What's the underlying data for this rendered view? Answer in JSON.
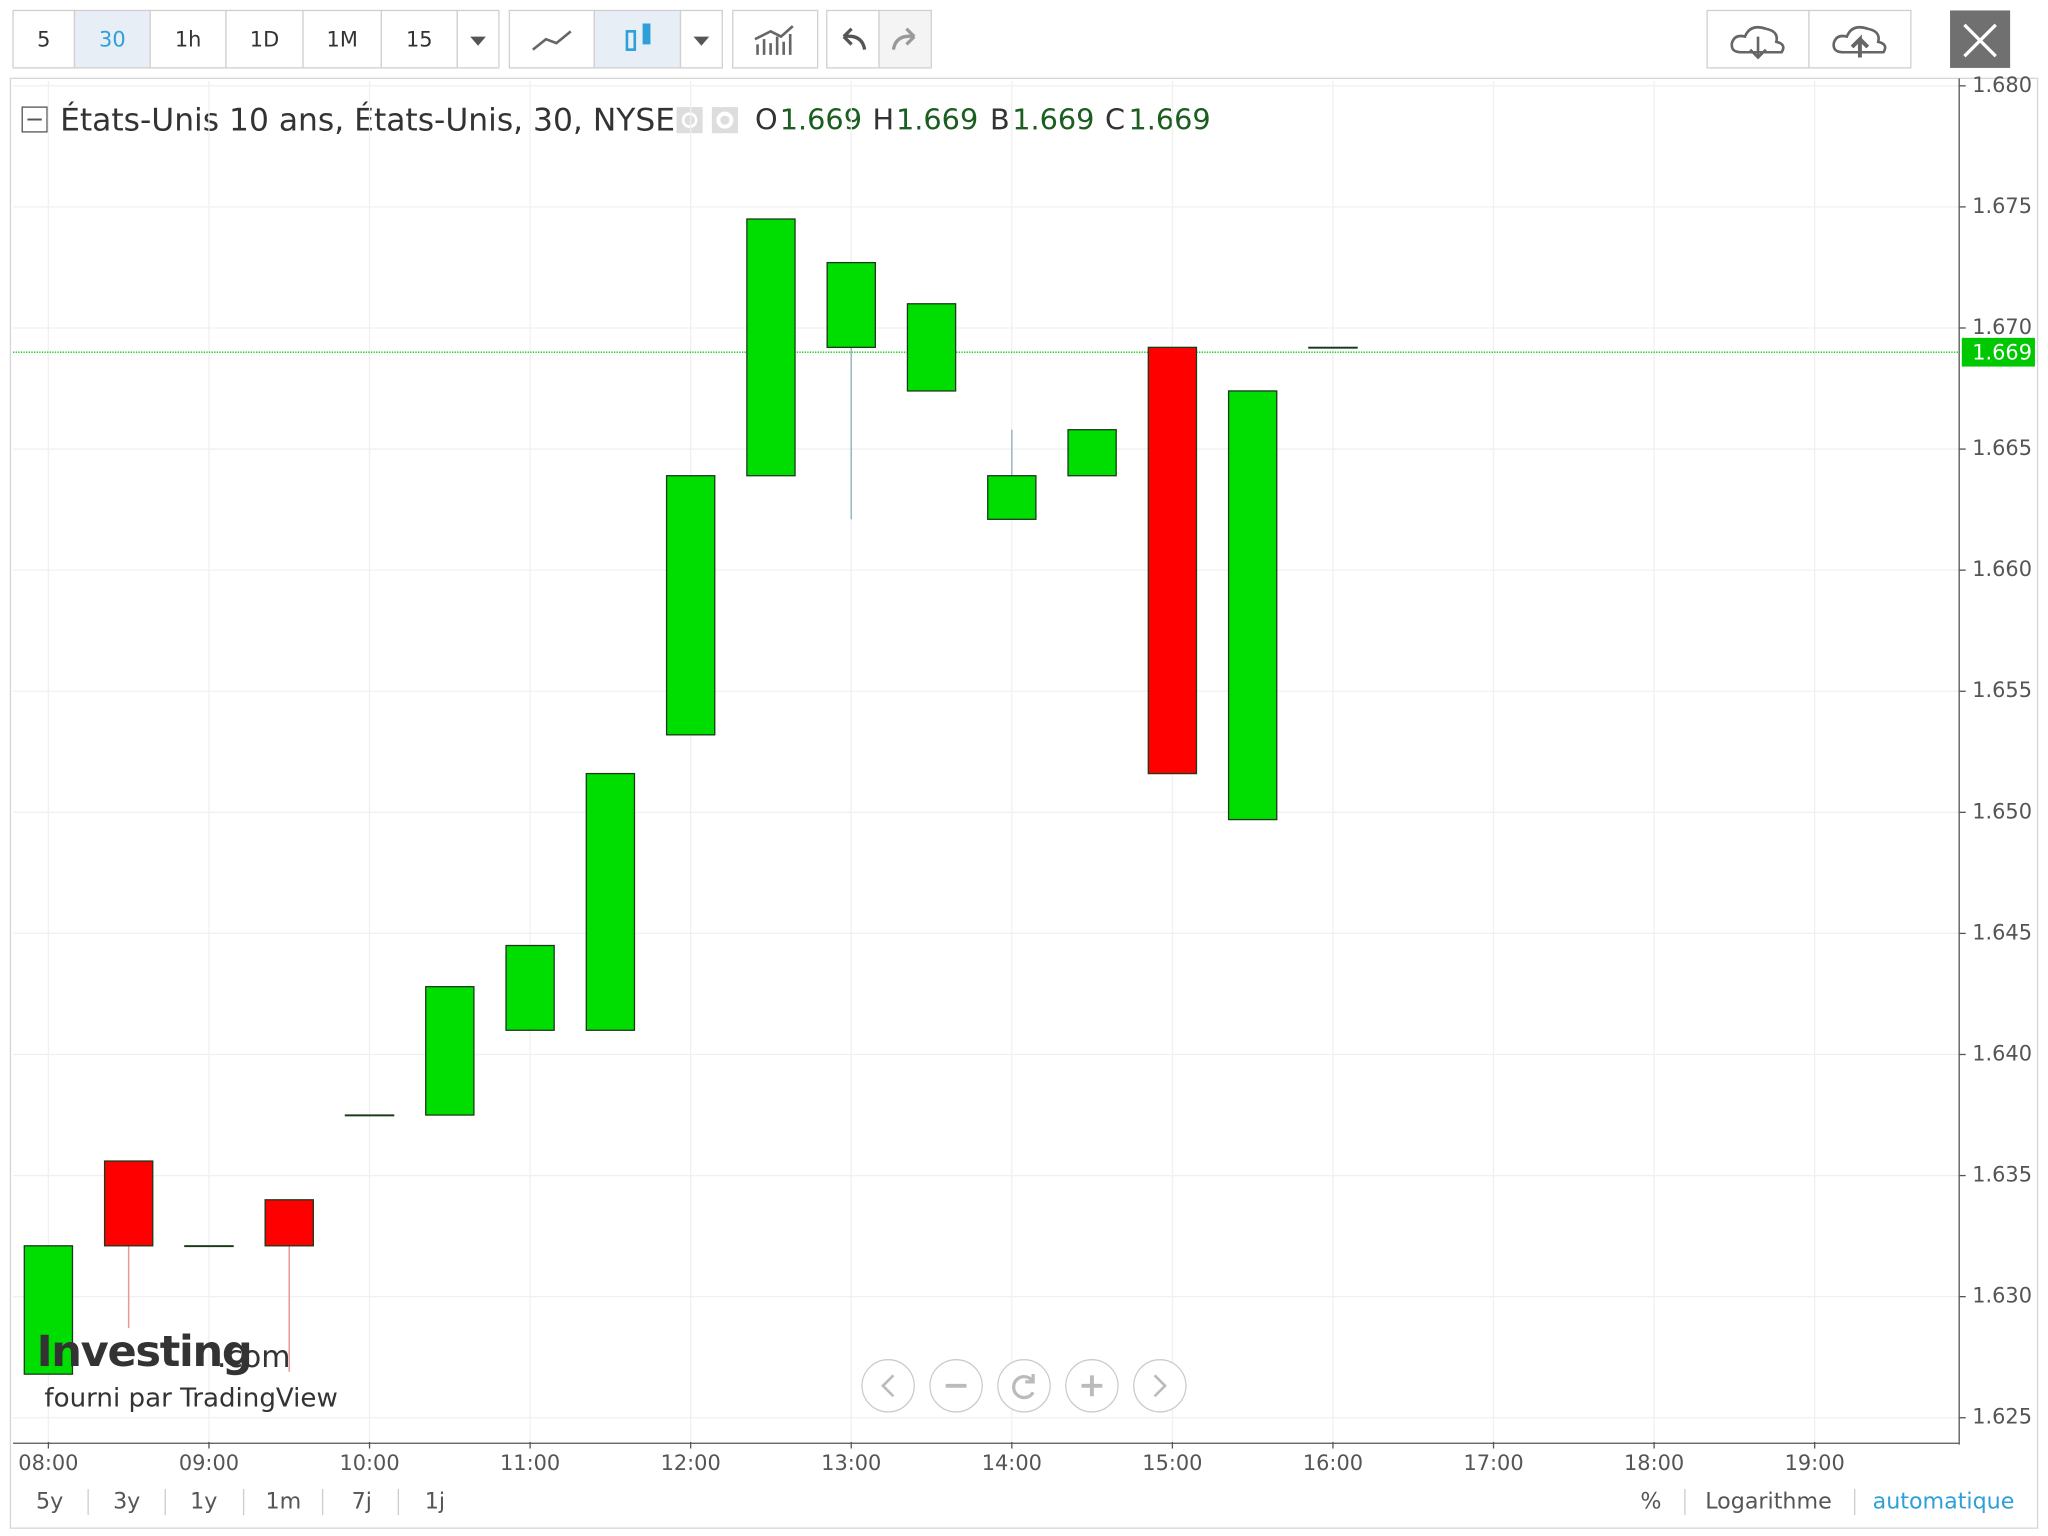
{
  "toolbar": {
    "intervals": [
      "5",
      "30",
      "1h",
      "1D",
      "1M",
      "15"
    ],
    "active_interval": 1
  },
  "header": {
    "title": "États-Unis 10 ans, États-Unis, 30, NYSE",
    "ohlc": [
      {
        "label": "O",
        "value": "1.669"
      },
      {
        "label": "H",
        "value": "1.669"
      },
      {
        "label": "B",
        "value": "1.669"
      },
      {
        "label": "C",
        "value": "1.669"
      }
    ]
  },
  "watermark": {
    "brand": "Investing",
    "suffix": ".com",
    "credit": "fourni par TradingView"
  },
  "footer": {
    "ranges": [
      "5y",
      "3y",
      "1y",
      "1m",
      "7j",
      "1j"
    ],
    "scale_options": [
      "%",
      "Logarithme",
      "automatique"
    ]
  },
  "chart_data": {
    "type": "candlestick",
    "x": [
      8,
      8.5,
      9,
      9.5,
      10,
      10.5,
      11,
      11.5,
      12,
      12.5,
      13,
      13.5,
      14,
      14.5,
      15,
      15.5,
      16
    ],
    "open": [
      1.6268,
      1.6356,
      1.6321,
      1.634,
      1.6375,
      1.6375,
      1.641,
      1.641,
      1.6532,
      1.6639,
      1.6692,
      1.6674,
      1.6621,
      1.6639,
      1.6692,
      1.6497,
      1.6692
    ],
    "high": [
      1.6321,
      1.6356,
      1.6321,
      1.634,
      1.6375,
      1.6428,
      1.6445,
      1.6516,
      1.6639,
      1.6745,
      1.6727,
      1.671,
      1.6658,
      1.6658,
      1.6692,
      1.6674,
      1.6692
    ],
    "low": [
      1.6268,
      1.6287,
      1.6321,
      1.6269,
      1.6375,
      1.6375,
      1.641,
      1.641,
      1.6532,
      1.6639,
      1.6621,
      1.6674,
      1.6621,
      1.6639,
      1.6516,
      1.6497,
      1.6692
    ],
    "close": [
      1.6321,
      1.6321,
      1.6321,
      1.6321,
      1.6375,
      1.6428,
      1.6445,
      1.6516,
      1.6639,
      1.6745,
      1.6727,
      1.671,
      1.6639,
      1.6658,
      1.6516,
      1.6674,
      1.6692
    ],
    "up_color": "#00dd00",
    "down_color": "#ff0000",
    "last_price": 1.669,
    "last_price_color": "#00c800",
    "xlim": [
      7.78,
      19.9
    ],
    "xticks": [
      {
        "value": 8,
        "label": "08:00"
      },
      {
        "value": 9,
        "label": "09:00"
      },
      {
        "value": 10,
        "label": "10:00"
      },
      {
        "value": 11,
        "label": "11:00"
      },
      {
        "value": 12,
        "label": "12:00"
      },
      {
        "value": 13,
        "label": "13:00"
      },
      {
        "value": 14,
        "label": "14:00"
      },
      {
        "value": 15,
        "label": "15:00"
      },
      {
        "value": 16,
        "label": "16:00"
      },
      {
        "value": 17,
        "label": "17:00"
      },
      {
        "value": 18,
        "label": "18:00"
      },
      {
        "value": 19,
        "label": "19:00"
      }
    ],
    "ylim": [
      1.624,
      1.6802
    ],
    "yticks": [
      1.625,
      {
        "value": 1.63,
        "label": "1.630"
      },
      1.635,
      {
        "value": 1.64,
        "label": "1.640"
      },
      1.645,
      {
        "value": 1.65,
        "label": "1.650"
      },
      1.655,
      {
        "value": 1.66,
        "label": "1.660"
      },
      1.665,
      {
        "value": 1.67,
        "label": "1.670"
      },
      1.675,
      {
        "value": 1.68,
        "label": "1.680"
      }
    ],
    "grid": true
  }
}
